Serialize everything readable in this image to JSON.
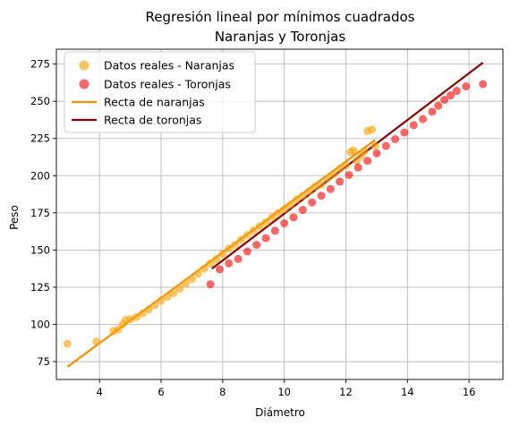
{
  "chart_data": {
    "type": "scatter",
    "title": "Regresión lineal por mínimos cuadrados",
    "subtitle": "Naranjas y Toronjas",
    "xlabel": "Diámetro",
    "ylabel": "Peso",
    "xlim": [
      2.6,
      17.1
    ],
    "ylim": [
      63,
      285
    ],
    "xticks": [
      4,
      6,
      8,
      10,
      12,
      14,
      16
    ],
    "yticks": [
      75,
      100,
      125,
      150,
      175,
      200,
      225,
      250,
      275
    ],
    "grid": true,
    "legend_position": "top-left",
    "series": [
      {
        "name": "Datos reales - Naranjas",
        "kind": "scatter",
        "color": "#f5a000",
        "x": [
          2.96,
          3.9,
          4.45,
          4.6,
          4.75,
          4.85,
          5.0,
          5.2,
          5.4,
          5.6,
          5.8,
          6.0,
          6.2,
          6.4,
          6.6,
          6.8,
          7.0,
          7.2,
          7.4,
          7.6,
          7.8,
          8.0,
          8.2,
          8.4,
          8.6,
          8.8,
          9.0,
          9.2,
          9.4,
          9.6,
          9.8,
          10.0,
          10.2,
          10.4,
          10.6,
          10.8,
          11.0,
          11.2,
          11.4,
          11.6,
          11.8,
          12.0,
          12.15,
          12.25,
          12.35,
          12.5,
          12.6,
          12.7,
          12.85,
          12.95
        ],
        "y": [
          87,
          88.5,
          95.5,
          96.5,
          100,
          103,
          103.5,
          105,
          107.5,
          110,
          113,
          116,
          118.5,
          121,
          124,
          127.5,
          130.5,
          134,
          137.5,
          141,
          144,
          147.5,
          151,
          153.5,
          157,
          160,
          163,
          166,
          168.5,
          172,
          175,
          177.5,
          180.5,
          184,
          186.5,
          189.5,
          192.5,
          194,
          198,
          201,
          204.5,
          207,
          216,
          217,
          210,
          213.5,
          216.5,
          230,
          231,
          220
        ]
      },
      {
        "name": "Datos reales - Toronjas",
        "kind": "scatter",
        "color": "#ff0000",
        "x": [
          7.6,
          7.9,
          8.2,
          8.5,
          8.8,
          9.1,
          9.4,
          9.7,
          10.0,
          10.3,
          10.6,
          10.9,
          11.2,
          11.5,
          11.8,
          12.1,
          12.4,
          12.7,
          13.0,
          13.3,
          13.6,
          13.9,
          14.2,
          14.5,
          14.8,
          15.0,
          15.2,
          15.4,
          15.6,
          15.9,
          16.45
        ],
        "y": [
          127,
          137,
          141,
          144,
          149,
          153.5,
          158,
          163,
          168,
          172,
          177,
          182,
          186.5,
          191,
          196,
          200.5,
          205.5,
          210,
          215,
          220,
          224.5,
          229,
          234,
          238,
          243,
          247,
          251,
          254,
          257,
          260,
          261.5
        ]
      },
      {
        "name": "Recta de naranjas",
        "kind": "line",
        "color": "#ff8c00",
        "x": [
          2.96,
          12.95
        ],
        "y": [
          71.5,
          224
        ]
      },
      {
        "name": "Recta de toronjas",
        "kind": "line",
        "color": "#8b0000",
        "x": [
          7.65,
          16.45
        ],
        "y": [
          137.5,
          276
        ]
      }
    ]
  }
}
